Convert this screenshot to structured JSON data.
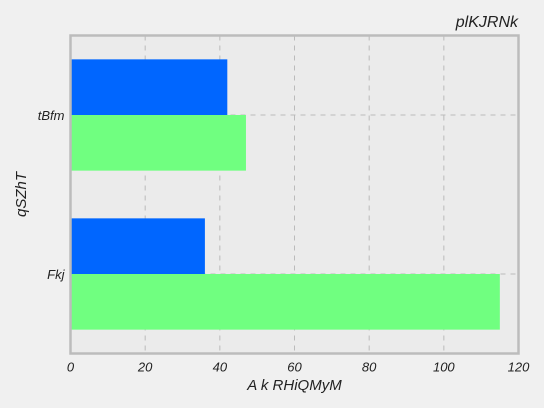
{
  "chart_data": {
    "type": "bar",
    "orientation": "horizontal",
    "title": "plKJRNk",
    "xlabel": "A k RHiQMyM",
    "ylabel": "qSZhT",
    "categories": [
      "tBfm",
      "Fkj"
    ],
    "series": [
      {
        "values": [
          42,
          36
        ],
        "color": "#0066ff"
      },
      {
        "values": [
          47,
          115
        ],
        "color": "#70ff80"
      }
    ],
    "xlim": [
      0,
      120
    ],
    "xticks": [
      "0",
      "20",
      "40",
      "60",
      "80",
      "100",
      "120"
    ],
    "grid": true,
    "plot_background": "#ebebeb",
    "grid_color": "#bbbbbb",
    "frame_color": "#bcbcbc"
  }
}
